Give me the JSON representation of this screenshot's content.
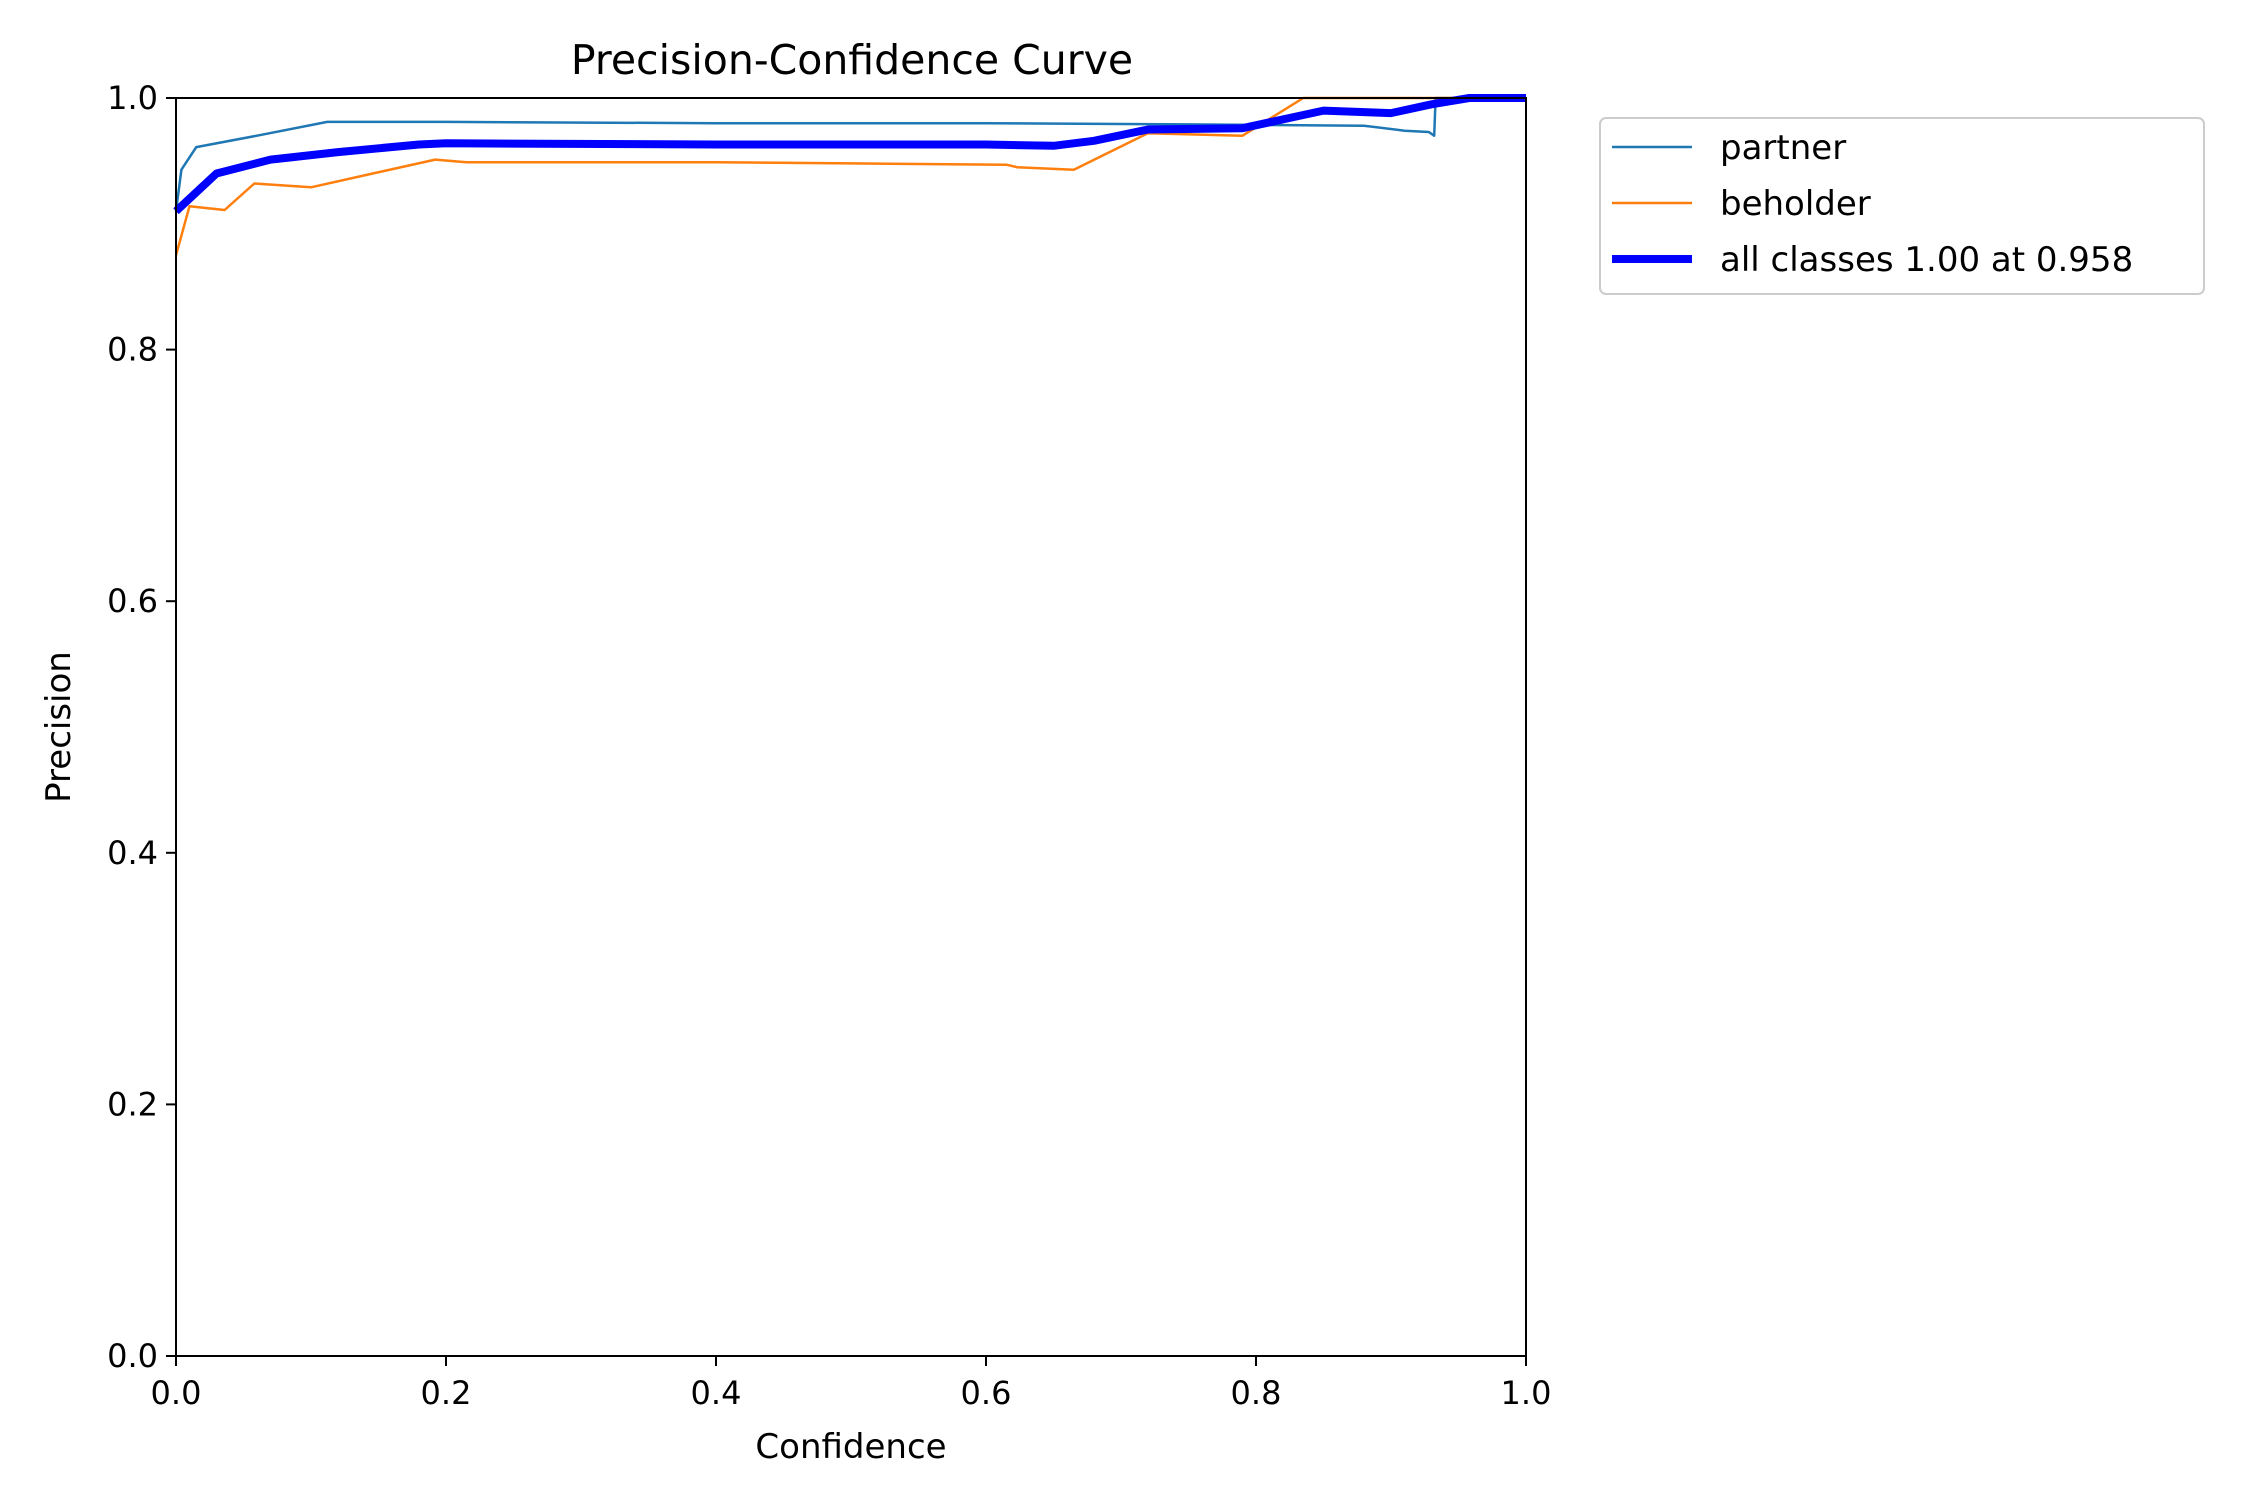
{
  "chart_data": {
    "type": "line",
    "title": "Precision-Confidence Curve",
    "xlabel": "Confidence",
    "ylabel": "Precision",
    "xlim": [
      0,
      1
    ],
    "ylim": [
      0,
      1
    ],
    "xticks": [
      "0.0",
      "0.2",
      "0.4",
      "0.6",
      "0.8",
      "1.0"
    ],
    "yticks": [
      "0.0",
      "0.2",
      "0.4",
      "0.6",
      "0.8",
      "1.0"
    ],
    "grid": false,
    "legend_position": "outside-top-right",
    "series": [
      {
        "name": "partner",
        "color": "#1f77b4",
        "line_width": "thin",
        "points": [
          [
            0.0,
            0.91
          ],
          [
            0.004,
            0.943
          ],
          [
            0.015,
            0.961
          ],
          [
            0.06,
            0.97
          ],
          [
            0.112,
            0.981
          ],
          [
            0.2,
            0.981
          ],
          [
            0.4,
            0.98
          ],
          [
            0.6,
            0.98
          ],
          [
            0.75,
            0.979
          ],
          [
            0.88,
            0.978
          ],
          [
            0.91,
            0.974
          ],
          [
            0.928,
            0.973
          ],
          [
            0.932,
            0.97
          ],
          [
            0.933,
            1.0
          ],
          [
            1.0,
            1.0
          ]
        ]
      },
      {
        "name": "beholder",
        "color": "#ff7f0e",
        "line_width": "thin",
        "points": [
          [
            0.0,
            0.875
          ],
          [
            0.01,
            0.914
          ],
          [
            0.036,
            0.911
          ],
          [
            0.058,
            0.932
          ],
          [
            0.1,
            0.929
          ],
          [
            0.192,
            0.951
          ],
          [
            0.215,
            0.949
          ],
          [
            0.4,
            0.949
          ],
          [
            0.5,
            0.948
          ],
          [
            0.615,
            0.947
          ],
          [
            0.623,
            0.945
          ],
          [
            0.665,
            0.943
          ],
          [
            0.72,
            0.972
          ],
          [
            0.79,
            0.97
          ],
          [
            0.835,
            1.0
          ],
          [
            1.0,
            1.0
          ]
        ]
      },
      {
        "name": "all classes 1.00 at 0.958",
        "color": "#0000ff",
        "line_width": "thick",
        "points": [
          [
            0.0,
            0.91
          ],
          [
            0.015,
            0.925
          ],
          [
            0.03,
            0.94
          ],
          [
            0.07,
            0.951
          ],
          [
            0.12,
            0.957
          ],
          [
            0.18,
            0.963
          ],
          [
            0.2,
            0.964
          ],
          [
            0.4,
            0.963
          ],
          [
            0.6,
            0.963
          ],
          [
            0.65,
            0.962
          ],
          [
            0.68,
            0.966
          ],
          [
            0.72,
            0.975
          ],
          [
            0.79,
            0.976
          ],
          [
            0.82,
            0.983
          ],
          [
            0.85,
            0.99
          ],
          [
            0.9,
            0.988
          ],
          [
            0.93,
            0.995
          ],
          [
            0.958,
            1.0
          ],
          [
            1.0,
            1.0
          ]
        ]
      }
    ]
  }
}
